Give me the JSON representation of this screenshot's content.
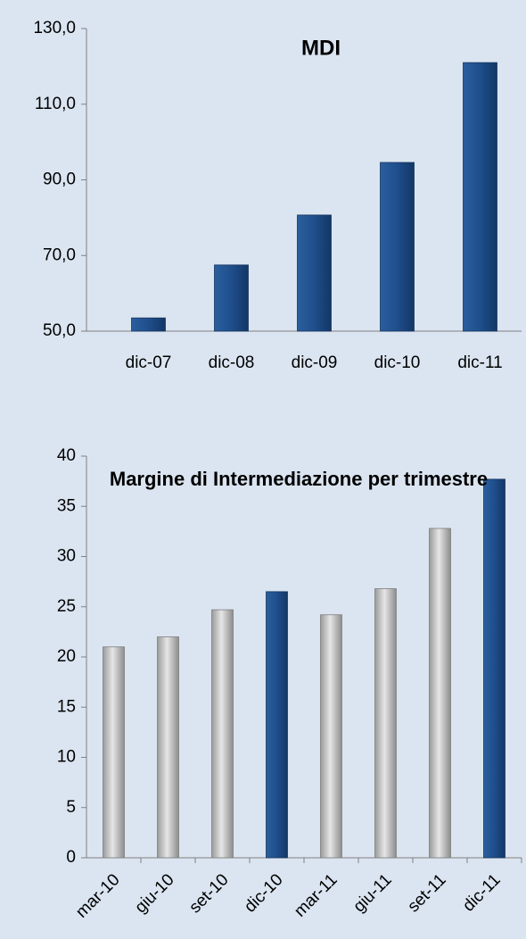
{
  "chart_data": [
    {
      "type": "bar",
      "title": "MDI",
      "categories": [
        "dic-07",
        "dic-08",
        "dic-09",
        "dic-10",
        "dic-11"
      ],
      "values": [
        53.5,
        67.5,
        80.7,
        94.6,
        121
      ],
      "color": "#1f4e8c",
      "ylim": [
        50,
        130
      ],
      "yticks": [
        {
          "value": 50,
          "label": "50,0"
        },
        {
          "value": 70,
          "label": "70,0"
        },
        {
          "value": 90,
          "label": "90,0"
        },
        {
          "value": 110,
          "label": "110,0"
        },
        {
          "value": 130,
          "label": "130,0"
        }
      ]
    },
    {
      "type": "bar",
      "title": "Margine di Intermediazione per trimestre",
      "categories": [
        "mar-10",
        "giu-10",
        "set-10",
        "dic-10",
        "mar-11",
        "giu-11",
        "set-11",
        "dic-11"
      ],
      "values": [
        21,
        22,
        24.7,
        26.5,
        24.2,
        26.8,
        32.8,
        37.7
      ],
      "colors": [
        "#bfbfbf",
        "#bfbfbf",
        "#bfbfbf",
        "#1f4e8c",
        "#bfbfbf",
        "#bfbfbf",
        "#bfbfbf",
        "#1f4e8c"
      ],
      "ylim": [
        0,
        40
      ],
      "yticks": [
        0,
        5,
        10,
        15,
        20,
        25,
        30,
        35,
        40
      ]
    }
  ]
}
